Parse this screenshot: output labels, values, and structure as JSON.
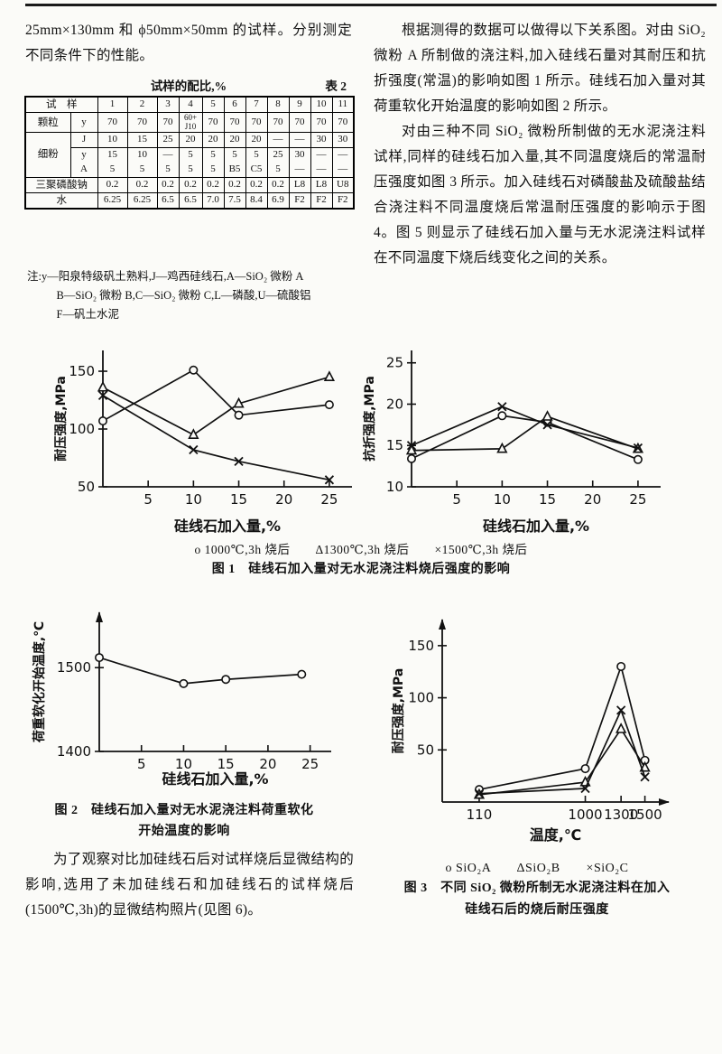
{
  "left_column": {
    "intro_text": "25mm×130mm 和 ϕ50mm×50mm 的试样。分别测定不同条件下的性能。",
    "table": {
      "title": "试样的配比,%",
      "table_no": "表 2",
      "header": {
        "label": "试　样",
        "cols": [
          "1",
          "2",
          "3",
          "4",
          "5",
          "6",
          "7",
          "8",
          "9",
          "10",
          "11"
        ]
      },
      "rows": [
        {
          "group": "颗粒",
          "sub": "y",
          "values": [
            "70",
            "70",
            "70",
            "60+\nJ10",
            "70",
            "70",
            "70",
            "70",
            "70",
            "70",
            "70"
          ]
        },
        {
          "group": "细粉",
          "sub": "J",
          "values": [
            "10",
            "15",
            "25",
            "20",
            "20",
            "20",
            "20",
            "—",
            "—",
            "30",
            "30"
          ]
        },
        {
          "group": "",
          "sub": "y",
          "values": [
            "15",
            "10",
            "—",
            "5",
            "5",
            "5",
            "5",
            "25",
            "30",
            "—",
            "—"
          ]
        },
        {
          "group": "",
          "sub": "A",
          "values": [
            "5",
            "5",
            "5",
            "5",
            "5",
            "B5",
            "C5",
            "5",
            "—",
            "—",
            "—"
          ]
        },
        {
          "group": "三聚磷酸钠",
          "sub": "",
          "values": [
            "0.2",
            "0.2",
            "0.2",
            "0.2",
            "0.2",
            "0.2",
            "0.2",
            "0.2",
            "L8",
            "L8",
            "U8"
          ]
        },
        {
          "group": "水",
          "sub": "",
          "values": [
            "6.25",
            "6.25",
            "6.5",
            "6.5",
            "7.0",
            "7.5",
            "8.4",
            "6.9",
            "F2",
            "F2",
            "F2"
          ]
        }
      ],
      "notes": [
        "注:y—阳泉特级矾土熟料,J—鸡西硅线石,A—SiO₂ 微粉 A",
        "B—SiO₂ 微粉 B,C—SiO₂ 微粉 C,L—磷酸,U—硫酸铝",
        "F—矾土水泥"
      ]
    }
  },
  "right_column": {
    "para1": "根据测得的数据可以做得以下关系图。对由 SiO₂ 微粉 A 所制做的浇注料,加入硅线石量对其耐压和抗折强度(常温)的影响如图 1 所示。硅线石加入量对其荷重软化开始温度的影响如图 2 所示。",
    "para2": "对由三种不同 SiO₂ 微粉所制做的无水泥浇注料试样,同样的硅线石加入量,其不同温度烧后的常温耐压强度如图 3 所示。加入硅线石对磷酸盐及硫酸盐结合浇注料不同温度烧后常温耐压强度的影响示于图 4。图 5 则显示了硅线石加入量与无水泥浇注料试样在不同温度下烧后线变化之间的关系。"
  },
  "figure1": {
    "legend": "o 1000℃,3h 烧后　　Δ1300℃,3h 烧后　　×1500℃,3h 烧后",
    "caption": "图 1　硅线石加入量对无水泥浇注料烧后强度的影响"
  },
  "figure2": {
    "caption_line1": "图 2　硅线石加入量对无水泥浇注料荷重软化",
    "caption_line2": "开始温度的影响"
  },
  "figure3": {
    "legend": "o SiO₂A　　ΔSiO₂B　　×SiO₂C",
    "caption_line1": "图 3　不同 SiO₂ 微粉所制无水泥浇注料在加入",
    "caption_line2": "硅线石后的烧后耐压强度"
  },
  "bottom_left_para": "为了观察对比加硅线石后对试样烧后显微结构的影响,选用了未加硅线石和加硅线石的试样烧后(1500℃,3h)的显微结构照片(见图 6)。",
  "chart_data": [
    {
      "type": "line",
      "title": "硅线石加入量对无水泥浇注料烧后耐压强度的影响",
      "xlabel": "硅线石加入量,%",
      "ylabel": "耐压强度,MPa",
      "xlim": [
        0,
        27.5
      ],
      "ylim": [
        50,
        168
      ],
      "xticks": [
        5,
        10,
        15,
        20,
        25
      ],
      "yticks": [
        50,
        100,
        150
      ],
      "x": [
        0,
        10,
        15,
        25
      ],
      "series": [
        {
          "name": "1000℃,3h 烧后",
          "marker": "circle",
          "values": [
            107,
            151,
            112,
            121
          ]
        },
        {
          "name": "1300℃,3h 烧后",
          "marker": "triangle",
          "values": [
            136,
            95,
            122,
            145
          ]
        },
        {
          "name": "1500℃,3h 烧后",
          "marker": "x",
          "values": [
            129,
            82,
            72,
            56
          ]
        }
      ]
    },
    {
      "type": "line",
      "title": "硅线石加入量对无水泥浇注料烧后抗折强度的影响",
      "xlabel": "硅线石加入量,%",
      "ylabel": "抗折强度,MPa",
      "xlim": [
        0,
        27.5
      ],
      "ylim": [
        10,
        26.5
      ],
      "xticks": [
        5,
        10,
        15,
        20,
        25
      ],
      "yticks": [
        10,
        15,
        20,
        25
      ],
      "x": [
        0,
        10,
        15,
        25
      ],
      "series": [
        {
          "name": "1000℃,3h 烧后",
          "marker": "circle",
          "values": [
            13.4,
            18.6,
            17.8,
            13.3
          ]
        },
        {
          "name": "1300℃,3h 烧后",
          "marker": "triangle",
          "values": [
            14.4,
            14.6,
            18.5,
            14.6
          ]
        },
        {
          "name": "1500℃,3h 烧后",
          "marker": "x",
          "values": [
            15.0,
            19.7,
            17.5,
            14.7
          ]
        }
      ]
    },
    {
      "type": "line",
      "title": "硅线石加入量对无水泥浇注料荷重软化开始温度的影响",
      "xlabel": "硅线石加入量,%",
      "ylabel": "荷重软化开始温度,℃",
      "xlim": [
        0,
        27.5
      ],
      "ylim": [
        1400,
        1566
      ],
      "xticks": [
        5,
        10,
        15,
        20,
        25
      ],
      "yticks": [
        1400,
        1500
      ],
      "x": [
        0,
        10,
        15,
        24
      ],
      "arrow_y": true,
      "series": [
        {
          "name": "荷重软化开始温度",
          "marker": "circle",
          "values": [
            1512,
            1481,
            1486,
            1492
          ]
        }
      ]
    },
    {
      "type": "line",
      "title": "不同 SiO₂ 微粉所制无水泥浇注料在加入硅线石后的烧后耐压强度",
      "xlabel": "温度,℃",
      "ylabel": "耐压强度,MPa",
      "xlim": [
        -200,
        1700
      ],
      "ylim": [
        0,
        175
      ],
      "xticks": [
        110,
        1000,
        1300,
        1500
      ],
      "yticks": [
        50,
        100,
        150
      ],
      "x": [
        110,
        1000,
        1300,
        1500
      ],
      "arrow_y": true,
      "arrow_x": true,
      "series": [
        {
          "name": "SiO₂A",
          "marker": "circle",
          "values": [
            12,
            32,
            130,
            40
          ]
        },
        {
          "name": "SiO₂B",
          "marker": "triangle",
          "values": [
            7,
            19,
            70,
            33
          ]
        },
        {
          "name": "SiO₂C",
          "marker": "x",
          "values": [
            8,
            13,
            88,
            24
          ]
        }
      ]
    }
  ]
}
